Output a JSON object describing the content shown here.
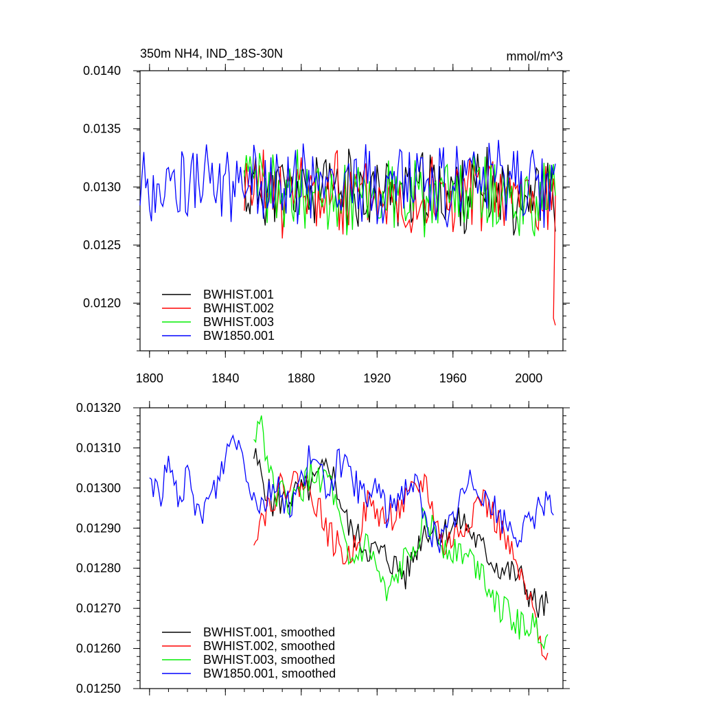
{
  "colors": {
    "BWHIST.001": "#000000",
    "BWHIST.002": "#ff0000",
    "BWHIST.003": "#00ee00",
    "BW1850.001": "#0000ff"
  },
  "chart_data": [
    {
      "type": "line",
      "title": "350m NH4, IND_18S-30N",
      "units": "mmol/m^3",
      "xlim": [
        1795,
        2018
      ],
      "ylim": [
        0.01159,
        0.014
      ],
      "xticks": [
        "1800",
        "1840",
        "1880",
        "1920",
        "1960",
        "2000"
      ],
      "xtick_values": [
        1800,
        1840,
        1880,
        1920,
        1960,
        2000
      ],
      "yticks": [
        "0.0140",
        "0.0135",
        "0.0130",
        "0.0125",
        "0.0120"
      ],
      "ytick_values": [
        0.014,
        0.0135,
        0.013,
        0.0125,
        0.012
      ],
      "legend_position": "bottom-left",
      "series": [
        {
          "name": "BWHIST.001",
          "start": 1850,
          "seed": 11,
          "mean": 0.01298,
          "amp": 0.0003,
          "trend": -2e-05
        },
        {
          "name": "BWHIST.002",
          "start": 1850,
          "seed": 23,
          "mean": 0.01295,
          "amp": 0.00032,
          "trend": -3e-05,
          "end_drop": [
            0.01187,
            0.01181
          ]
        },
        {
          "name": "BWHIST.003",
          "start": 1850,
          "seed": 37,
          "mean": 0.01295,
          "amp": 0.0003,
          "trend": -3e-05
        },
        {
          "name": "BW1850.001",
          "start": 1795,
          "seed": 53,
          "mean": 0.01303,
          "amp": 0.0003,
          "trend": -1e-05
        }
      ]
    },
    {
      "type": "line",
      "title": "",
      "xlim": [
        1795,
        2018
      ],
      "ylim": [
        0.0125,
        0.0132
      ],
      "yticks": [
        "0.01320",
        "0.01310",
        "0.01300",
        "0.01290",
        "0.01280",
        "0.01270",
        "0.01260",
        "0.01250"
      ],
      "ytick_values": [
        0.0132,
        0.0131,
        0.013,
        0.0129,
        0.0128,
        0.0127,
        0.0126,
        0.0125
      ],
      "xtick_values": [
        1800,
        1840,
        1880,
        1920,
        1960,
        2000
      ],
      "legend_position": "bottom-left",
      "series": [
        {
          "name": "BWHIST.001, smoothed",
          "key": "BWHIST.001",
          "x": [
            1855,
            1865,
            1875,
            1885,
            1895,
            1905,
            1915,
            1925,
            1935,
            1945,
            1955,
            1965,
            1975,
            1985,
            1995,
            2005,
            2010
          ],
          "y": [
            0.01308,
            0.01296,
            0.01298,
            0.013,
            0.01306,
            0.0129,
            0.01285,
            0.01283,
            0.01278,
            0.0129,
            0.01289,
            0.01292,
            0.01285,
            0.0128,
            0.01278,
            0.0127,
            0.01271
          ]
        },
        {
          "name": "BWHIST.002, smoothed",
          "key": "BWHIST.002",
          "x": [
            1855,
            1865,
            1875,
            1885,
            1895,
            1905,
            1915,
            1925,
            1935,
            1945,
            1955,
            1965,
            1975,
            1985,
            1995,
            2005,
            2010
          ],
          "y": [
            0.01289,
            0.01298,
            0.01302,
            0.013,
            0.01288,
            0.01282,
            0.01296,
            0.01292,
            0.01296,
            0.01302,
            0.01285,
            0.0129,
            0.01298,
            0.0129,
            0.01278,
            0.01265,
            0.01258
          ]
        },
        {
          "name": "BWHIST.003, smoothed",
          "key": "BWHIST.003",
          "x": [
            1855,
            1858,
            1865,
            1875,
            1885,
            1895,
            1905,
            1915,
            1925,
            1935,
            1945,
            1955,
            1965,
            1975,
            1985,
            1995,
            2005,
            2010
          ],
          "y": [
            0.0131,
            0.01319,
            0.013,
            0.01296,
            0.01303,
            0.01302,
            0.0128,
            0.01286,
            0.01272,
            0.01282,
            0.01292,
            0.01286,
            0.01284,
            0.0128,
            0.0127,
            0.01266,
            0.01265,
            0.01262
          ]
        },
        {
          "name": "BW1850.001, smoothed",
          "key": "BW1850.001",
          "x": [
            1800,
            1805,
            1810,
            1815,
            1820,
            1825,
            1830,
            1835,
            1840,
            1845,
            1850,
            1855,
            1860,
            1865,
            1870,
            1875,
            1880,
            1885,
            1890,
            1895,
            1900,
            1905,
            1910,
            1915,
            1920,
            1925,
            1930,
            1935,
            1940,
            1945,
            1950,
            1955,
            1960,
            1965,
            1970,
            1975,
            1980,
            1985,
            1990,
            1995,
            2000,
            2005,
            2010,
            2013
          ],
          "y": [
            0.01303,
            0.01298,
            0.01305,
            0.01298,
            0.01302,
            0.01293,
            0.01296,
            0.013,
            0.01308,
            0.01314,
            0.01307,
            0.01298,
            0.01296,
            0.01301,
            0.01298,
            0.01296,
            0.01302,
            0.01308,
            0.01303,
            0.013,
            0.01307,
            0.01303,
            0.013,
            0.01296,
            0.01302,
            0.01293,
            0.01298,
            0.013,
            0.01302,
            0.01292,
            0.01288,
            0.01287,
            0.01292,
            0.01298,
            0.01302,
            0.013,
            0.01296,
            0.01292,
            0.0129,
            0.01288,
            0.0129,
            0.01295,
            0.01298,
            0.01297
          ]
        }
      ]
    }
  ]
}
